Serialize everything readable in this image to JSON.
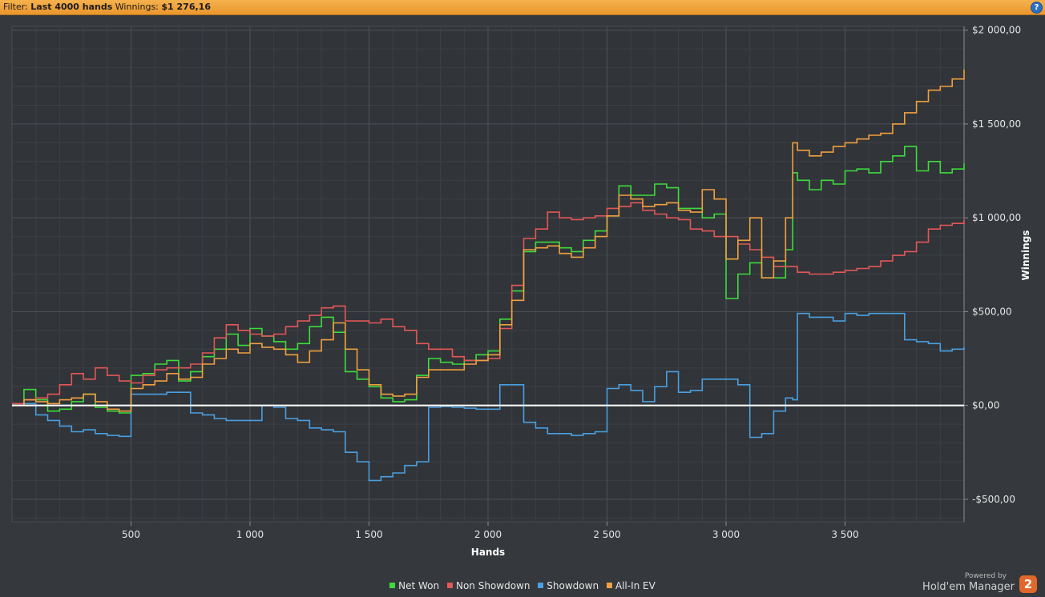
{
  "filter_bar": {
    "filter_label": "Filter:",
    "filter_value": "Last 4000 hands",
    "winnings_label": "Winnings:",
    "winnings_value": "$1 276,16",
    "help_glyph": "?"
  },
  "chart_data": {
    "type": "line",
    "xlabel": "Hands",
    "ylabel": "Winnings",
    "xlim": [
      0,
      4000
    ],
    "ylim": [
      -620,
      2020
    ],
    "x_ticks": [
      {
        "value": 500,
        "label": "500"
      },
      {
        "value": 1000,
        "label": "1 000"
      },
      {
        "value": 1500,
        "label": "1 500"
      },
      {
        "value": 2000,
        "label": "2 000"
      },
      {
        "value": 2500,
        "label": "2 500"
      },
      {
        "value": 3000,
        "label": "3 000"
      },
      {
        "value": 3500,
        "label": "3 500"
      }
    ],
    "y_ticks": [
      {
        "value": 2000,
        "label": "$2 000,00"
      },
      {
        "value": 1500,
        "label": "$1 500,00"
      },
      {
        "value": 1000,
        "label": "$1 000,00"
      },
      {
        "value": 500,
        "label": "$500,00"
      },
      {
        "value": 0,
        "label": "$0,00"
      },
      {
        "value": -500,
        "label": "-$500,00"
      }
    ],
    "grid": true,
    "legend_position": "bottom-center",
    "series": [
      {
        "name": "Net Won",
        "color": "#3ddc3d",
        "x": [
          0,
          50,
          100,
          150,
          200,
          250,
          300,
          350,
          400,
          450,
          500,
          550,
          600,
          650,
          700,
          750,
          800,
          850,
          900,
          950,
          1000,
          1050,
          1100,
          1150,
          1200,
          1250,
          1300,
          1350,
          1400,
          1450,
          1500,
          1550,
          1600,
          1650,
          1700,
          1750,
          1800,
          1850,
          1900,
          1950,
          2000,
          2050,
          2100,
          2150,
          2200,
          2250,
          2300,
          2350,
          2400,
          2450,
          2500,
          2550,
          2600,
          2650,
          2700,
          2750,
          2800,
          2850,
          2900,
          2950,
          3000,
          3050,
          3100,
          3150,
          3200,
          3250,
          3280,
          3300,
          3350,
          3400,
          3450,
          3500,
          3550,
          3600,
          3650,
          3700,
          3750,
          3800,
          3850,
          3900,
          3950,
          4000
        ],
        "y": [
          0,
          85,
          30,
          -30,
          -20,
          20,
          60,
          -10,
          -30,
          -40,
          160,
          170,
          220,
          240,
          130,
          180,
          260,
          300,
          380,
          320,
          410,
          370,
          340,
          300,
          330,
          420,
          470,
          390,
          180,
          140,
          100,
          40,
          20,
          30,
          160,
          250,
          230,
          220,
          240,
          270,
          290,
          460,
          610,
          820,
          870,
          870,
          840,
          820,
          880,
          930,
          1010,
          1170,
          1120,
          1120,
          1180,
          1160,
          1050,
          1050,
          1000,
          1020,
          570,
          700,
          760,
          680,
          680,
          830,
          1240,
          1200,
          1150,
          1200,
          1180,
          1250,
          1260,
          1240,
          1300,
          1330,
          1380,
          1250,
          1300,
          1240,
          1260,
          1290
        ]
      },
      {
        "name": "Non Showdown",
        "color": "#e35757",
        "x": [
          0,
          50,
          100,
          150,
          200,
          250,
          300,
          350,
          400,
          450,
          500,
          550,
          600,
          650,
          700,
          750,
          800,
          850,
          900,
          950,
          1000,
          1050,
          1100,
          1150,
          1200,
          1250,
          1300,
          1350,
          1400,
          1450,
          1500,
          1550,
          1600,
          1650,
          1700,
          1750,
          1800,
          1850,
          1900,
          1950,
          2000,
          2050,
          2100,
          2150,
          2200,
          2250,
          2300,
          2350,
          2400,
          2450,
          2500,
          2550,
          2600,
          2650,
          2700,
          2750,
          2800,
          2850,
          2900,
          2950,
          3000,
          3050,
          3100,
          3150,
          3200,
          3250,
          3300,
          3350,
          3400,
          3450,
          3500,
          3550,
          3600,
          3650,
          3700,
          3750,
          3800,
          3850,
          3900,
          3950,
          4000
        ],
        "y": [
          10,
          30,
          40,
          60,
          110,
          170,
          140,
          200,
          160,
          130,
          120,
          160,
          190,
          200,
          200,
          220,
          280,
          360,
          430,
          400,
          380,
          370,
          380,
          420,
          450,
          480,
          520,
          530,
          450,
          450,
          440,
          460,
          420,
          400,
          330,
          300,
          300,
          260,
          240,
          240,
          250,
          410,
          640,
          890,
          940,
          1030,
          1000,
          990,
          1000,
          1010,
          1050,
          1060,
          1080,
          1040,
          1020,
          1000,
          990,
          940,
          930,
          900,
          900,
          860,
          830,
          790,
          740,
          740,
          710,
          700,
          700,
          710,
          720,
          730,
          740,
          770,
          800,
          820,
          870,
          940,
          960,
          970,
          990
        ]
      },
      {
        "name": "Showdown",
        "color": "#4a9fe0",
        "x": [
          0,
          50,
          100,
          150,
          200,
          250,
          300,
          350,
          400,
          450,
          500,
          550,
          600,
          650,
          700,
          750,
          800,
          850,
          900,
          950,
          1000,
          1050,
          1100,
          1150,
          1200,
          1250,
          1300,
          1350,
          1400,
          1450,
          1500,
          1550,
          1600,
          1650,
          1700,
          1750,
          1800,
          1850,
          1900,
          1950,
          2000,
          2050,
          2100,
          2150,
          2200,
          2250,
          2300,
          2350,
          2400,
          2450,
          2500,
          2550,
          2600,
          2650,
          2700,
          2750,
          2800,
          2850,
          2900,
          2950,
          3000,
          3050,
          3100,
          3150,
          3200,
          3250,
          3280,
          3300,
          3350,
          3400,
          3450,
          3500,
          3550,
          3600,
          3650,
          3700,
          3750,
          3800,
          3850,
          3900,
          3950,
          4000
        ],
        "y": [
          0,
          10,
          -50,
          -80,
          -110,
          -140,
          -130,
          -150,
          -160,
          -165,
          60,
          60,
          60,
          70,
          70,
          -40,
          -50,
          -70,
          -80,
          -80,
          -80,
          0,
          -10,
          -70,
          -80,
          -120,
          -130,
          -140,
          -250,
          -300,
          -400,
          -380,
          -360,
          -320,
          -300,
          -10,
          -5,
          -10,
          -15,
          -20,
          -20,
          110,
          110,
          -90,
          -120,
          -150,
          -150,
          -160,
          -150,
          -140,
          90,
          110,
          80,
          20,
          100,
          180,
          70,
          80,
          140,
          140,
          140,
          110,
          -170,
          -150,
          -30,
          40,
          30,
          490,
          470,
          470,
          450,
          490,
          480,
          490,
          490,
          490,
          350,
          340,
          330,
          290,
          300,
          310
        ]
      },
      {
        "name": "All-In EV",
        "color": "#f0a040",
        "x": [
          0,
          50,
          100,
          150,
          200,
          250,
          300,
          350,
          400,
          450,
          500,
          550,
          600,
          650,
          700,
          750,
          800,
          850,
          900,
          950,
          1000,
          1050,
          1100,
          1150,
          1200,
          1250,
          1300,
          1350,
          1400,
          1450,
          1500,
          1550,
          1600,
          1650,
          1700,
          1750,
          1800,
          1850,
          1900,
          1950,
          2000,
          2050,
          2100,
          2150,
          2200,
          2250,
          2300,
          2350,
          2400,
          2450,
          2500,
          2550,
          2600,
          2650,
          2700,
          2750,
          2800,
          2850,
          2900,
          2950,
          3000,
          3050,
          3100,
          3150,
          3200,
          3250,
          3280,
          3300,
          3350,
          3400,
          3450,
          3500,
          3550,
          3600,
          3650,
          3700,
          3750,
          3800,
          3850,
          3900,
          3950,
          4000
        ],
        "y": [
          0,
          30,
          20,
          10,
          30,
          40,
          60,
          20,
          -20,
          -30,
          90,
          110,
          130,
          170,
          140,
          150,
          220,
          250,
          300,
          280,
          330,
          310,
          300,
          270,
          230,
          290,
          350,
          440,
          300,
          190,
          110,
          60,
          50,
          60,
          150,
          190,
          190,
          190,
          220,
          240,
          270,
          430,
          560,
          830,
          840,
          850,
          810,
          790,
          840,
          900,
          1010,
          1120,
          1100,
          1060,
          1070,
          1080,
          1040,
          1030,
          1150,
          1100,
          780,
          880,
          1000,
          680,
          770,
          1000,
          1400,
          1360,
          1330,
          1350,
          1380,
          1400,
          1420,
          1440,
          1450,
          1500,
          1560,
          1620,
          1680,
          1700,
          1740,
          1790
        ]
      }
    ]
  },
  "legend": {
    "items": [
      {
        "label": "Net Won",
        "color": "#3ddc3d"
      },
      {
        "label": "Non Showdown",
        "color": "#e35757"
      },
      {
        "label": "Showdown",
        "color": "#4a9fe0"
      },
      {
        "label": "All-In EV",
        "color": "#f0a040"
      }
    ]
  },
  "branding": {
    "powered_by": "Powered by",
    "product": "Hold'em Manager",
    "logo_glyph": "2",
    "logo_color": "#e0682a"
  }
}
